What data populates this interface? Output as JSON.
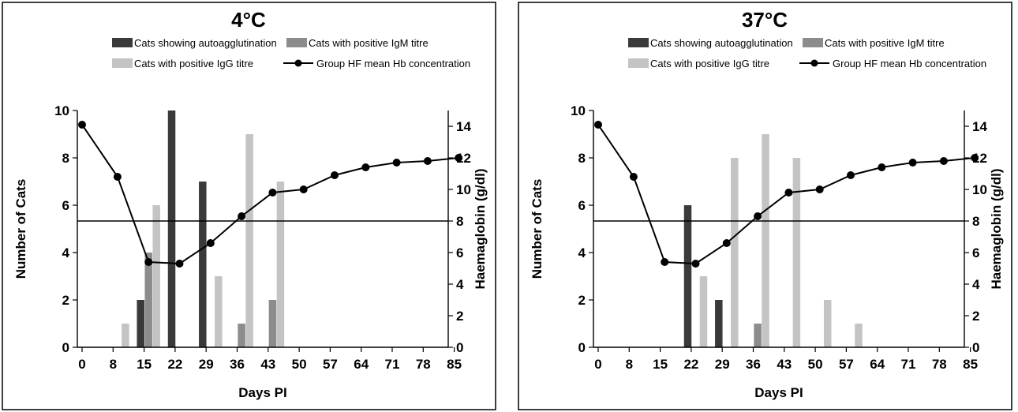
{
  "chart_data": [
    {
      "type": "bar",
      "title": "4°C",
      "xlabel": "Days PI",
      "ylabel": "Number of Cats",
      "y2label": "Haemaglobin (g/dl)",
      "ylim": [
        0,
        10
      ],
      "y2lim": [
        0,
        15
      ],
      "yticks": [
        0,
        2,
        4,
        6,
        8,
        10
      ],
      "y2ticks": [
        0,
        2,
        4,
        6,
        8,
        10,
        12,
        14
      ],
      "categories": [
        "0",
        "8",
        "15",
        "22",
        "29",
        "36",
        "43",
        "50",
        "57",
        "64",
        "71",
        "78",
        "85"
      ],
      "reference_line_hb": 8,
      "series": [
        {
          "name": "Cats showing autoagglutination",
          "color": "#3a3a3a",
          "bars": [
            {
              "day": 15,
              "value": 2
            },
            {
              "day": 22,
              "value": 10
            },
            {
              "day": 29,
              "value": 7
            }
          ]
        },
        {
          "name": "Cats with positive IgM titre",
          "color": "#8c8c8c",
          "bars": [
            {
              "day": 15,
              "value": 4
            },
            {
              "day": 36,
              "value": 1
            },
            {
              "day": 43,
              "value": 2
            }
          ]
        },
        {
          "name": "Cats with positive IgG titre",
          "color": "#c4c4c4",
          "bars": [
            {
              "day": 8,
              "value": 1
            },
            {
              "day": 15,
              "value": 6
            },
            {
              "day": 29,
              "value": 3
            },
            {
              "day": 36,
              "value": 9
            },
            {
              "day": 43,
              "value": 7
            }
          ]
        },
        {
          "name": "Group HF mean Hb concentration",
          "type": "line",
          "color": "#000000",
          "points": [
            {
              "day": 0,
              "value": 14.1
            },
            {
              "day": 8,
              "value": 10.8
            },
            {
              "day": 15,
              "value": 5.4
            },
            {
              "day": 22,
              "value": 5.3
            },
            {
              "day": 29,
              "value": 6.6
            },
            {
              "day": 36,
              "value": 8.3
            },
            {
              "day": 43,
              "value": 9.8
            },
            {
              "day": 50,
              "value": 10.0
            },
            {
              "day": 57,
              "value": 10.9
            },
            {
              "day": 64,
              "value": 11.4
            },
            {
              "day": 71,
              "value": 11.7
            },
            {
              "day": 78,
              "value": 11.8
            },
            {
              "day": 85,
              "value": 12.0
            }
          ]
        }
      ]
    },
    {
      "type": "bar",
      "title": "37°C",
      "xlabel": "Days PI",
      "ylabel": "Number of Cats",
      "y2label": "Haemaglobin (g/dl)",
      "ylim": [
        0,
        10
      ],
      "y2lim": [
        0,
        15
      ],
      "yticks": [
        0,
        2,
        4,
        6,
        8,
        10
      ],
      "y2ticks": [
        0,
        2,
        4,
        6,
        8,
        10,
        12,
        14
      ],
      "categories": [
        "0",
        "8",
        "15",
        "22",
        "29",
        "36",
        "43",
        "50",
        "57",
        "64",
        "71",
        "78",
        "85"
      ],
      "reference_line_hb": 8,
      "series": [
        {
          "name": "Cats showing autoagglutination",
          "color": "#3a3a3a",
          "bars": [
            {
              "day": 22,
              "value": 6
            },
            {
              "day": 29,
              "value": 2
            }
          ]
        },
        {
          "name": "Cats with positive IgM titre",
          "color": "#8c8c8c",
          "bars": [
            {
              "day": 36,
              "value": 1
            }
          ]
        },
        {
          "name": "Cats with positive IgG titre",
          "color": "#c4c4c4",
          "bars": [
            {
              "day": 22,
              "value": 3
            },
            {
              "day": 29,
              "value": 8
            },
            {
              "day": 36,
              "value": 9
            },
            {
              "day": 43,
              "value": 8
            },
            {
              "day": 50,
              "value": 2
            },
            {
              "day": 57,
              "value": 1
            }
          ]
        },
        {
          "name": "Group HF mean Hb concentration",
          "type": "line",
          "color": "#000000",
          "points": [
            {
              "day": 0,
              "value": 14.1
            },
            {
              "day": 8,
              "value": 10.8
            },
            {
              "day": 15,
              "value": 5.4
            },
            {
              "day": 22,
              "value": 5.3
            },
            {
              "day": 29,
              "value": 6.6
            },
            {
              "day": 36,
              "value": 8.3
            },
            {
              "day": 43,
              "value": 9.8
            },
            {
              "day": 50,
              "value": 10.0
            },
            {
              "day": 57,
              "value": 10.9
            },
            {
              "day": 64,
              "value": 11.4
            },
            {
              "day": 71,
              "value": 11.7
            },
            {
              "day": 78,
              "value": 11.8
            },
            {
              "day": 85,
              "value": 12.0
            }
          ]
        }
      ]
    }
  ]
}
